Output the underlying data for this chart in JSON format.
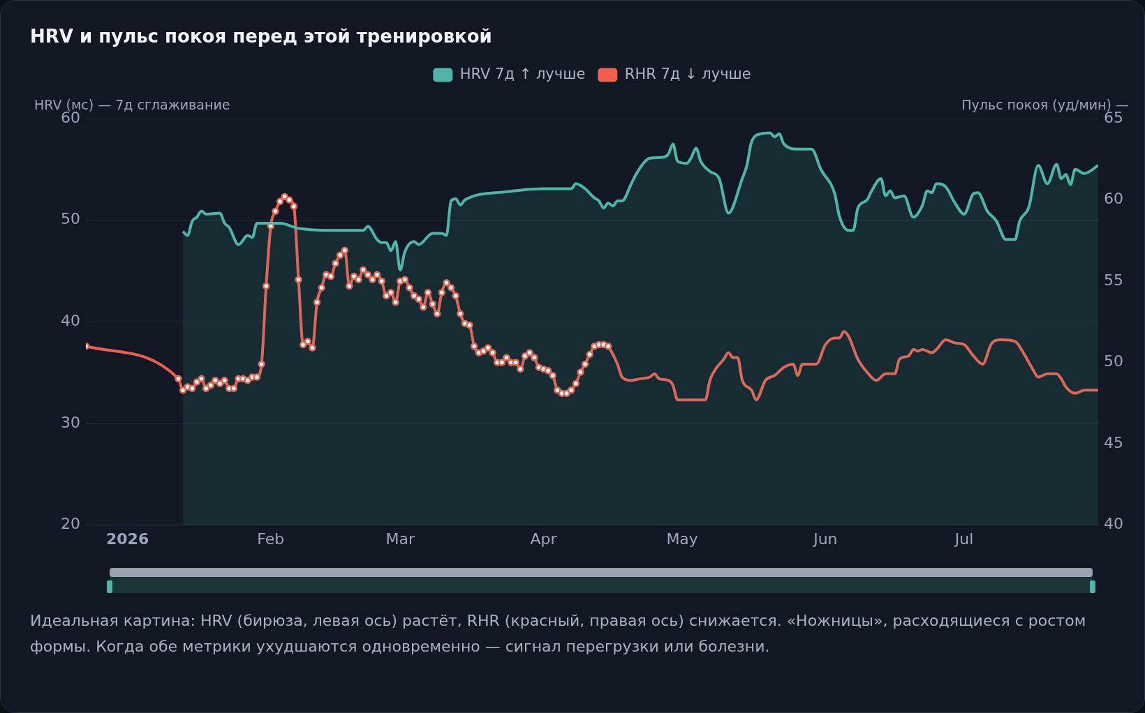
{
  "chart_data": {
    "type": "line",
    "title": "HRV и пульс покоя перед этой тренировкой",
    "ylabel": "HRV (мс) — 7д сглаживание",
    "y2label": "Пульс покоя (уд/мин) —",
    "xlim": [
      "2025-12-23",
      "2026-07-30"
    ],
    "xticks": [
      {
        "value": "2026-01-01",
        "label": "2026"
      },
      {
        "value": "2026-02-01",
        "label": "Feb"
      },
      {
        "value": "2026-03-01",
        "label": "Mar"
      },
      {
        "value": "2026-04-01",
        "label": "Apr"
      },
      {
        "value": "2026-05-01",
        "label": "May"
      },
      {
        "value": "2026-06-01",
        "label": "Jun"
      },
      {
        "value": "2026-07-01",
        "label": "Jul"
      }
    ],
    "ylim": [
      20,
      60
    ],
    "yticks": [
      20,
      30,
      40,
      50,
      60
    ],
    "y2lim": [
      40,
      65
    ],
    "y2ticks": [
      40,
      45,
      50,
      55,
      60,
      65
    ],
    "grid": "y",
    "legend": "top",
    "series": [
      {
        "name": "HRV 7д ↑ лучше",
        "type": "area",
        "color": "#4db6a8",
        "axis": "y",
        "x": [
          "2026-01-13",
          "2026-01-14",
          "2026-01-15",
          "2026-01-16",
          "2026-01-17",
          "2026-01-18",
          "2026-01-21",
          "2026-01-22",
          "2026-01-23",
          "2026-01-25",
          "2026-01-27",
          "2026-01-28",
          "2026-01-29",
          "2026-02-03",
          "2026-02-07",
          "2026-02-14",
          "2026-02-21",
          "2026-02-22",
          "2026-02-24",
          "2026-02-25",
          "2026-02-26",
          "2026-02-27",
          "2026-02-28",
          "2026-03-01",
          "2026-03-02",
          "2026-03-04",
          "2026-03-05",
          "2026-03-08",
          "2026-03-10",
          "2026-03-11",
          "2026-03-12",
          "2026-03-13",
          "2026-03-14",
          "2026-03-15",
          "2026-03-24",
          "2026-04-01",
          "2026-04-07",
          "2026-04-08",
          "2026-04-10",
          "2026-04-12",
          "2026-04-13",
          "2026-04-14",
          "2026-04-15",
          "2026-04-16",
          "2026-04-17",
          "2026-04-18",
          "2026-04-20",
          "2026-04-21",
          "2026-04-23",
          "2026-04-24",
          "2026-04-27",
          "2026-04-28",
          "2026-04-29",
          "2026-04-30",
          "2026-05-02",
          "2026-05-03",
          "2026-05-04",
          "2026-05-05",
          "2026-05-07",
          "2026-05-09",
          "2026-05-11",
          "2026-05-14",
          "2026-05-15",
          "2026-05-16",
          "2026-05-18",
          "2026-05-20",
          "2026-05-21",
          "2026-05-22",
          "2026-05-23",
          "2026-05-26",
          "2026-05-29",
          "2026-05-31",
          "2026-06-03",
          "2026-06-04",
          "2026-06-06",
          "2026-06-07",
          "2026-06-08",
          "2026-06-10",
          "2026-06-11",
          "2026-06-13",
          "2026-06-14",
          "2026-06-15",
          "2026-06-16",
          "2026-06-18",
          "2026-06-20",
          "2026-06-22",
          "2026-06-23",
          "2026-06-24",
          "2026-06-25",
          "2026-06-27",
          "2026-06-29",
          "2026-07-01",
          "2026-07-03",
          "2026-07-04",
          "2026-07-06",
          "2026-07-08",
          "2026-07-10",
          "2026-07-12",
          "2026-07-13",
          "2026-07-15",
          "2026-07-17",
          "2026-07-19",
          "2026-07-21",
          "2026-07-22",
          "2026-07-23",
          "2026-07-24",
          "2026-07-25",
          "2026-07-27",
          "2026-07-30"
        ],
        "values": [
          48.9,
          48.5,
          49.9,
          50.3,
          50.9,
          50.6,
          50.7,
          49.7,
          49.3,
          47.6,
          48.5,
          48.3,
          49.7,
          49.7,
          49.2,
          49.0,
          49.0,
          49.4,
          48.1,
          47.8,
          47.8,
          47.0,
          47.9,
          45.1,
          46.9,
          47.9,
          47.6,
          48.7,
          48.7,
          48.5,
          51.9,
          52.1,
          51.5,
          52.0,
          52.8,
          53.1,
          53.1,
          53.6,
          53.1,
          52.2,
          51.9,
          51.2,
          51.7,
          51.4,
          51.9,
          51.9,
          53.6,
          54.5,
          55.8,
          56.1,
          56.2,
          56.5,
          57.5,
          55.8,
          55.6,
          56.2,
          57.1,
          55.8,
          54.8,
          54.1,
          50.7,
          54.1,
          55.4,
          57.7,
          58.5,
          58.6,
          58.2,
          58.5,
          57.5,
          57.0,
          57.0,
          55.0,
          52.6,
          50.4,
          49.0,
          49.0,
          51.2,
          52.0,
          52.9,
          54.1,
          52.4,
          52.9,
          52.2,
          52.4,
          50.3,
          51.5,
          52.9,
          52.7,
          53.6,
          53.3,
          51.7,
          50.6,
          52.6,
          52.7,
          50.9,
          49.9,
          48.1,
          48.1,
          49.9,
          51.3,
          55.4,
          53.6,
          55.5,
          54.1,
          54.5,
          53.5,
          55.0,
          54.6,
          55.4
        ]
      },
      {
        "name": "RHR 7д ↓ лучше",
        "type": "line",
        "color": "#ef5e4e",
        "axis": "y2",
        "marker": "circle",
        "x": [
          "2025-12-23",
          "2026-01-12",
          "2026-01-13",
          "2026-01-14",
          "2026-01-15",
          "2026-01-16",
          "2026-01-17",
          "2026-01-18",
          "2026-01-19",
          "2026-01-20",
          "2026-01-21",
          "2026-01-22",
          "2026-01-23",
          "2026-01-24",
          "2026-01-25",
          "2026-01-26",
          "2026-01-27",
          "2026-01-28",
          "2026-01-29",
          "2026-01-30",
          "2026-01-31",
          "2026-02-01",
          "2026-02-02",
          "2026-02-03",
          "2026-02-04",
          "2026-02-05",
          "2026-02-06",
          "2026-02-07",
          "2026-02-08",
          "2026-02-09",
          "2026-02-10",
          "2026-02-11",
          "2026-02-12",
          "2026-02-13",
          "2026-02-14",
          "2026-02-15",
          "2026-02-16",
          "2026-02-17",
          "2026-02-18",
          "2026-02-19",
          "2026-02-20",
          "2026-02-21",
          "2026-02-22",
          "2026-02-23",
          "2026-02-24",
          "2026-02-25",
          "2026-02-26",
          "2026-02-27",
          "2026-02-28",
          "2026-03-01",
          "2026-03-02",
          "2026-03-03",
          "2026-03-04",
          "2026-03-05",
          "2026-03-06",
          "2026-03-07",
          "2026-03-08",
          "2026-03-09",
          "2026-03-10",
          "2026-03-11",
          "2026-03-12",
          "2026-03-13",
          "2026-03-14",
          "2026-03-15",
          "2026-03-16",
          "2026-03-17",
          "2026-03-18",
          "2026-03-19",
          "2026-03-20",
          "2026-03-21",
          "2026-03-22",
          "2026-03-23",
          "2026-03-24",
          "2026-03-25",
          "2026-03-26",
          "2026-03-27",
          "2026-03-28",
          "2026-03-29",
          "2026-03-30",
          "2026-03-31",
          "2026-04-01",
          "2026-04-02",
          "2026-04-03",
          "2026-04-04",
          "2026-04-05",
          "2026-04-06",
          "2026-04-07",
          "2026-04-08",
          "2026-04-09",
          "2026-04-10",
          "2026-04-11",
          "2026-04-12",
          "2026-04-13",
          "2026-04-14",
          "2026-04-15"
        ],
        "values": [
          51.0,
          49.0,
          48.3,
          48.5,
          48.4,
          48.8,
          49.0,
          48.4,
          48.6,
          48.9,
          48.7,
          48.9,
          48.4,
          48.4,
          49.0,
          49.0,
          48.9,
          49.1,
          49.1,
          49.9,
          54.7,
          58.4,
          59.3,
          59.9,
          60.2,
          60.0,
          59.6,
          55.1,
          51.1,
          51.3,
          50.9,
          53.7,
          54.6,
          55.4,
          55.3,
          56.1,
          56.6,
          56.9,
          54.7,
          55.3,
          55.1,
          55.7,
          55.4,
          55.1,
          55.4,
          55.0,
          54.1,
          54.3,
          53.7,
          55.0,
          55.1,
          54.6,
          54.1,
          53.9,
          53.4,
          54.3,
          53.6,
          53.0,
          54.3,
          54.9,
          54.6,
          54.1,
          53.0,
          52.4,
          52.3,
          51.0,
          50.6,
          50.7,
          50.9,
          50.6,
          50.0,
          50.0,
          50.3,
          50.0,
          50.0,
          49.6,
          50.4,
          50.6,
          50.3,
          49.7,
          49.6,
          49.5,
          49.2,
          48.3,
          48.1,
          48.1,
          48.3,
          48.7,
          49.4,
          49.9,
          50.5,
          51.0,
          51.1,
          51.1,
          51.0
        ]
      },
      {
        "type": "line",
        "color": "#ef5e4e",
        "axis": "y2",
        "marker": "none",
        "x": [
          "2026-04-15",
          "2026-04-16",
          "2026-04-17",
          "2026-04-18",
          "2026-04-20",
          "2026-04-22",
          "2026-04-24",
          "2026-04-25",
          "2026-04-26",
          "2026-04-28",
          "2026-04-29",
          "2026-04-30",
          "2026-05-04",
          "2026-05-06",
          "2026-05-07",
          "2026-05-08",
          "2026-05-10",
          "2026-05-11",
          "2026-05-12",
          "2026-05-13",
          "2026-05-14",
          "2026-05-16",
          "2026-05-17",
          "2026-05-19",
          "2026-05-21",
          "2026-05-23",
          "2026-05-25",
          "2026-05-26",
          "2026-05-27",
          "2026-05-30",
          "2026-06-01",
          "2026-06-03",
          "2026-06-04",
          "2026-06-05",
          "2026-06-06",
          "2026-06-08",
          "2026-06-10",
          "2026-06-12",
          "2026-06-14",
          "2026-06-16",
          "2026-06-17",
          "2026-06-19",
          "2026-06-20",
          "2026-06-21",
          "2026-06-22",
          "2026-06-24",
          "2026-06-25",
          "2026-06-27",
          "2026-06-29",
          "2026-07-01",
          "2026-07-03",
          "2026-07-05",
          "2026-07-07",
          "2026-07-09",
          "2026-07-12",
          "2026-07-14",
          "2026-07-16",
          "2026-07-17",
          "2026-07-19",
          "2026-07-21",
          "2026-07-22",
          "2026-07-23",
          "2026-07-25",
          "2026-07-27",
          "2026-07-30"
        ],
        "values": [
          51.0,
          50.5,
          49.9,
          49.1,
          48.9,
          49.0,
          49.1,
          49.3,
          49.0,
          48.9,
          48.6,
          47.7,
          47.7,
          47.7,
          48.9,
          49.5,
          50.2,
          50.6,
          50.3,
          50.3,
          48.9,
          48.3,
          47.7,
          48.9,
          49.2,
          49.7,
          49.9,
          49.2,
          49.9,
          49.9,
          51.1,
          51.5,
          51.5,
          51.9,
          51.6,
          50.2,
          49.4,
          48.9,
          49.3,
          49.3,
          50.2,
          50.4,
          50.8,
          50.7,
          50.8,
          50.6,
          50.8,
          51.4,
          51.2,
          51.1,
          50.4,
          49.9,
          51.2,
          51.4,
          51.3,
          50.5,
          49.5,
          49.1,
          49.3,
          49.3,
          49.0,
          48.5,
          48.1,
          48.3,
          48.3
        ]
      }
    ],
    "annotations": [
      "Идеальная картина: HRV (бирюза, левая ось) растёт, RHR (красный, правая ось) снижается. «Ножницы», расходящиеся с ростом формы. Когда обе метрики ухудшаются одновременно — сигнал перегрузки или болезни."
    ]
  }
}
